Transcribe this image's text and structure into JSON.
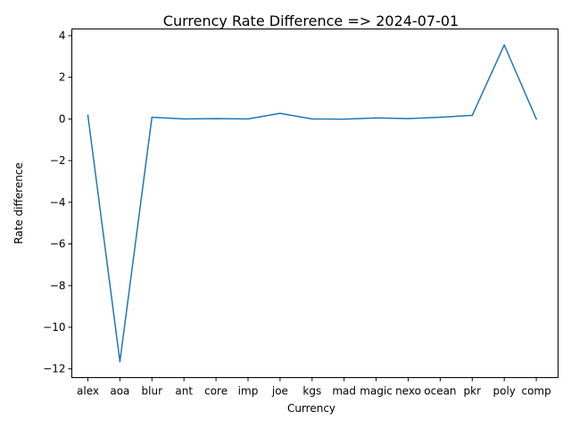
{
  "chart_data": {
    "type": "line",
    "title": "Currency Rate Difference => 2024-07-01",
    "xlabel": "Currency",
    "ylabel": "Rate difference",
    "categories": [
      "alex",
      "aoa",
      "blur",
      "ant",
      "core",
      "imp",
      "joe",
      "kgs",
      "mad",
      "magic",
      "nexo",
      "ocean",
      "pkr",
      "poly",
      "comp"
    ],
    "series": [
      {
        "values": [
          0.18,
          -11.65,
          0.08,
          0.0,
          0.02,
          0.0,
          0.27,
          0.0,
          -0.01,
          0.05,
          0.02,
          0.08,
          0.17,
          3.55,
          0.0
        ]
      }
    ],
    "yticks": [
      -12,
      -10,
      -8,
      -6,
      -4,
      -2,
      0,
      2,
      4
    ],
    "ylim": [
      -12.42,
      4.32
    ],
    "grid": false,
    "colors": {
      "line": "#1f77b4"
    }
  }
}
